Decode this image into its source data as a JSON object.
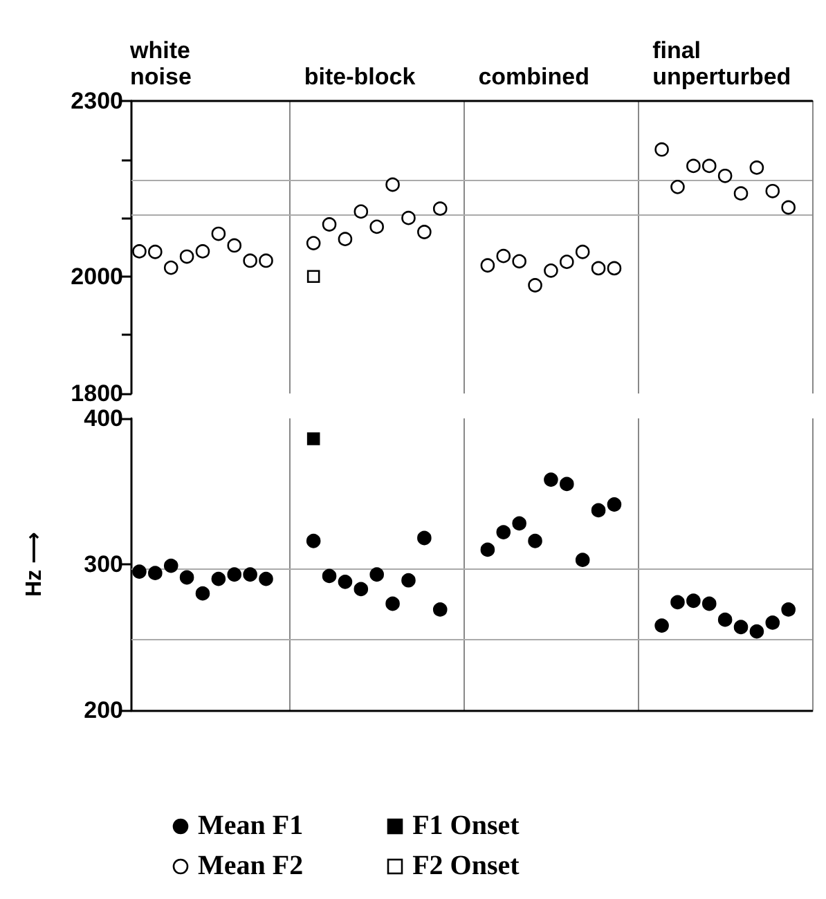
{
  "chart_data": [
    {
      "type": "scatter",
      "tick_labels": "y",
      "legend": "bottom",
      "ylim": [
        1800,
        2300
      ],
      "yticks": [
        1800,
        {
          "value": 1900,
          "label": null
        },
        2000,
        {
          "value": 2100,
          "label": null
        },
        {
          "value": 2200,
          "label": null
        },
        2300
      ],
      "categories": [
        null,
        null,
        null,
        null,
        null,
        null,
        null,
        null,
        null,
        null,
        null,
        null,
        null,
        null,
        null,
        null,
        null,
        null,
        null,
        null,
        null,
        null,
        null,
        null,
        null,
        null,
        null,
        null,
        null,
        null,
        null,
        null,
        null,
        null,
        null,
        null,
        null,
        null,
        null,
        null,
        null,
        null,
        null
      ],
      "annotations": [
        "white\nnoise",
        "bite-block",
        "combined",
        "final\nunperturbed"
      ],
      "ref_lines": [
        {
          "axis": "y",
          "value": 2165,
          "color": "#aaaaaa"
        },
        {
          "axis": "y",
          "value": 2105,
          "color": "#aaaaaa"
        }
      ],
      "series": [
        {
          "name": "Mean F2",
          "color": "#ffffff",
          "marker": "circle",
          "values": [
            2043,
            2042,
            2015,
            2034,
            2043,
            2073,
            2053,
            2027,
            2027,
            null,
            null,
            2057,
            2089,
            2064,
            2111,
            2085,
            2157,
            2100,
            2076,
            2116,
            null,
            null,
            2019,
            2035,
            2026,
            1985,
            2010,
            2025,
            2042,
            2014,
            2014,
            null,
            null,
            2217,
            2153,
            2189,
            2189,
            2172,
            2142,
            2186,
            2146,
            2118,
            null
          ]
        },
        {
          "name": "F2 Onset",
          "color": "#ffffff",
          "marker": "square",
          "values": [
            null,
            null,
            null,
            null,
            null,
            null,
            null,
            null,
            null,
            null,
            null,
            2000,
            null,
            null,
            null,
            null,
            null,
            null,
            null,
            null,
            null,
            null,
            null,
            null,
            null,
            null,
            null,
            null,
            null,
            null,
            null,
            null,
            null,
            null,
            null,
            null,
            null,
            null,
            null,
            null,
            null,
            null,
            null
          ]
        }
      ]
    },
    {
      "type": "scatter",
      "tick_labels": "y",
      "legend": "bottom",
      "ylabel": "Hz ⟶",
      "ylim": [
        200,
        400
      ],
      "yticks": [
        200,
        300,
        400
      ],
      "categories": [
        null,
        null,
        null,
        null,
        null,
        null,
        null,
        null,
        null,
        null,
        null,
        null,
        null,
        null,
        null,
        null,
        null,
        null,
        null,
        null,
        null,
        null,
        null,
        null,
        null,
        null,
        null,
        null,
        null,
        null,
        null,
        null,
        null,
        null,
        null,
        null,
        null,
        null,
        null,
        null,
        null,
        null,
        null
      ],
      "ref_lines": [
        {
          "axis": "y",
          "value": 297,
          "color": "#aaaaaa"
        },
        {
          "axis": "y",
          "value": 249,
          "color": "#aaaaaa"
        }
      ],
      "series": [
        {
          "name": "Mean F1",
          "color": "#000000",
          "marker": "circle",
          "values": [
            295,
            294,
            299,
            291,
            280,
            290,
            293,
            293,
            290,
            null,
            null,
            316,
            292,
            288,
            283,
            293,
            273,
            289,
            318,
            269,
            null,
            null,
            310,
            322,
            328,
            316,
            358,
            355,
            303,
            337,
            341,
            null,
            null,
            258,
            274,
            275,
            273,
            262,
            257,
            254,
            260,
            269,
            null
          ]
        },
        {
          "name": "F1 Onset",
          "color": "#000000",
          "marker": "square",
          "values": [
            null,
            null,
            null,
            null,
            null,
            null,
            null,
            null,
            null,
            null,
            null,
            386,
            null,
            null,
            null,
            null,
            null,
            null,
            null,
            null,
            null,
            null,
            null,
            null,
            null,
            null,
            null,
            null,
            null,
            null,
            null,
            null,
            null,
            null,
            null,
            null,
            null,
            null,
            null,
            null,
            null,
            null,
            null
          ]
        }
      ]
    }
  ]
}
